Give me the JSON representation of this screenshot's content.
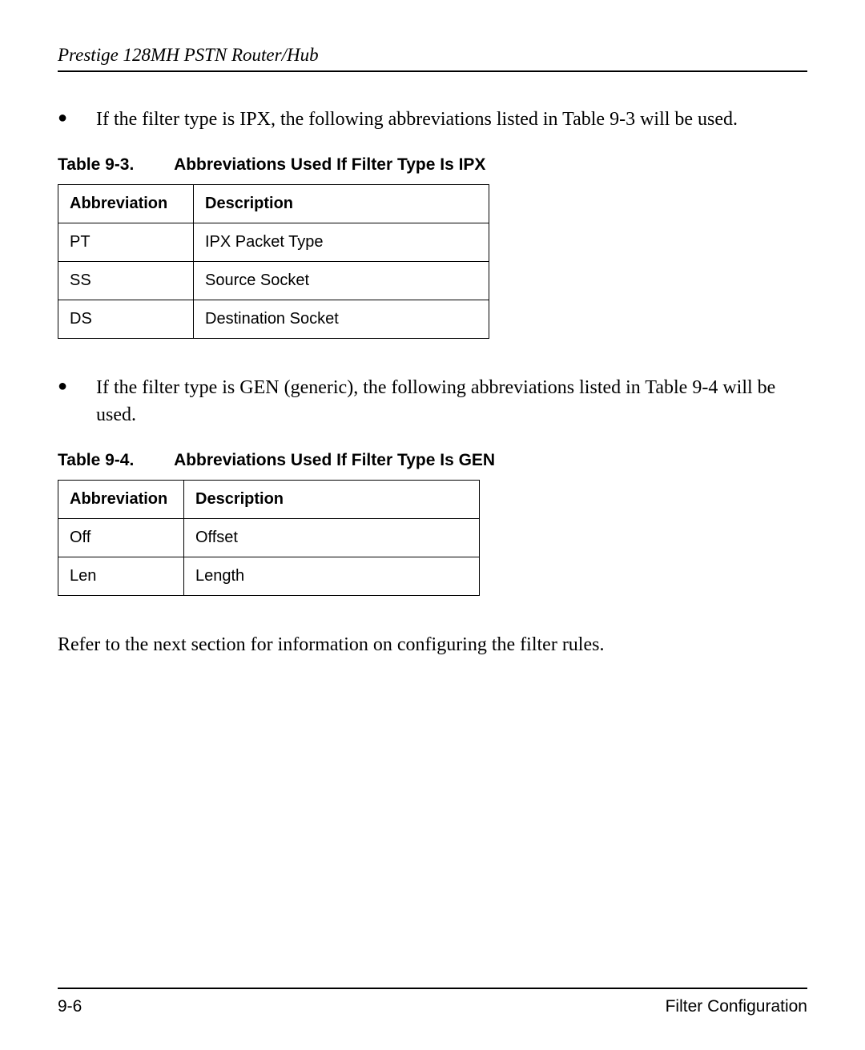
{
  "header": {
    "running_title": "Prestige 128MH  PSTN Router/Hub"
  },
  "bullet1": {
    "text": "If the filter type is IPX, the following abbreviations listed in Table 9-3 will be used."
  },
  "table1": {
    "caption_number": "Table 9-3.",
    "caption_title": "Abbreviations Used If Filter Type Is IPX",
    "columns": [
      "Abbreviation",
      "Description"
    ],
    "rows": [
      [
        "PT",
        "IPX Packet Type"
      ],
      [
        "SS",
        "Source Socket"
      ],
      [
        "DS",
        "Destination Socket"
      ]
    ]
  },
  "bullet2": {
    "text": "If the filter type is GEN (generic), the following abbreviations listed in Table 9-4 will be used."
  },
  "table2": {
    "caption_number": "Table 9-4.",
    "caption_title": "Abbreviations Used If Filter Type Is GEN",
    "columns": [
      "Abbreviation",
      "Description"
    ],
    "rows": [
      [
        "Off",
        "Offset"
      ],
      [
        "Len",
        "Length"
      ]
    ]
  },
  "closing_para": "Refer to the next section for information on configuring the filter rules.",
  "footer": {
    "page_number": "9-6",
    "section_title": "Filter Configuration"
  }
}
